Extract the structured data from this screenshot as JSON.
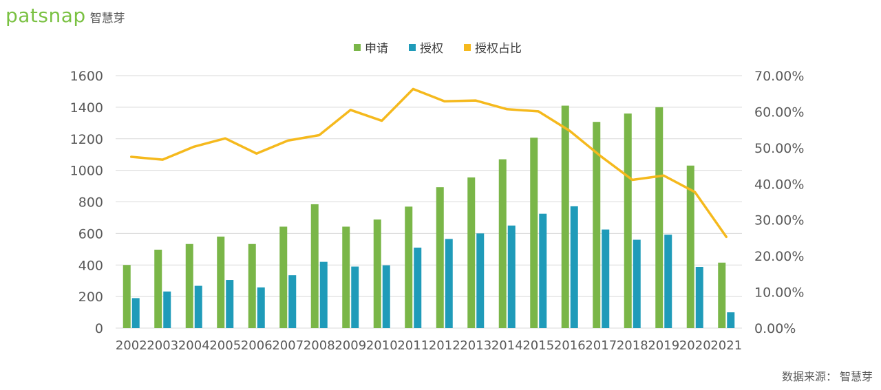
{
  "brand": {
    "logo_text": "patsnap",
    "logo_cn": "智慧芽"
  },
  "source": {
    "label": "数据来源：",
    "value": "智慧芽"
  },
  "colors": {
    "applications": "#7ab648",
    "grants": "#1f9bb9",
    "ratio": "#f5b91d",
    "grid": "#d9d9d9",
    "tick": "#595959"
  },
  "chart_data": {
    "type": "bar+line",
    "categories": [
      "2002",
      "2003",
      "2004",
      "2005",
      "2006",
      "2007",
      "2008",
      "2009",
      "2010",
      "2011",
      "2012",
      "2013",
      "2014",
      "2015",
      "2016",
      "2017",
      "2018",
      "2019",
      "2020",
      "2021"
    ],
    "series": [
      {
        "name": "申请",
        "type": "bar",
        "axis": "left",
        "values": [
          400,
          497,
          533,
          580,
          533,
          643,
          785,
          643,
          688,
          770,
          893,
          955,
          1070,
          1207,
          1410,
          1307,
          1360,
          1400,
          1030,
          415
        ]
      },
      {
        "name": "授权",
        "type": "bar",
        "axis": "left",
        "values": [
          190,
          232,
          268,
          305,
          258,
          335,
          420,
          390,
          398,
          510,
          565,
          600,
          650,
          725,
          772,
          625,
          560,
          592,
          388,
          100
        ]
      },
      {
        "name": "授权占比",
        "type": "line",
        "axis": "right",
        "values": [
          0.475,
          0.467,
          0.503,
          0.526,
          0.484,
          0.52,
          0.535,
          0.605,
          0.575,
          0.663,
          0.629,
          0.631,
          0.607,
          0.601,
          0.547,
          0.476,
          0.411,
          0.423,
          0.377,
          0.253
        ]
      }
    ],
    "left_axis": {
      "min": 0,
      "max": 1600,
      "ticks": [
        "0",
        "200",
        "400",
        "600",
        "800",
        "1000",
        "1200",
        "1400",
        "1600"
      ]
    },
    "right_axis": {
      "min": 0,
      "max": 0.7,
      "ticks": [
        "0.00%",
        "10.00%",
        "20.00%",
        "30.00%",
        "40.00%",
        "50.00%",
        "60.00%",
        "70.00%"
      ]
    },
    "legend": {
      "position": "top-center",
      "items": [
        "申请",
        "授权",
        "授权占比"
      ]
    },
    "grid": true
  }
}
